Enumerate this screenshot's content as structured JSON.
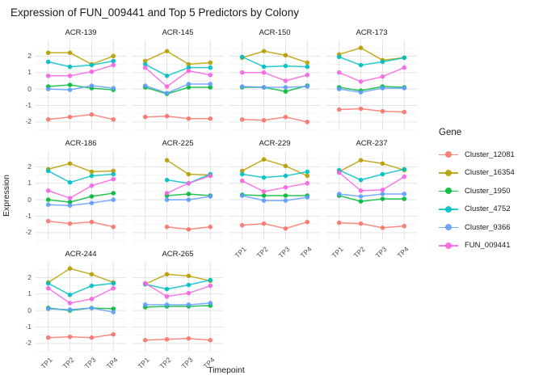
{
  "title": "Expression of FUN_009441 and Top 5 Predictors by Colony",
  "axes": {
    "x_title": "Timepoint",
    "y_title": "Expression",
    "y_tick_labels": [
      "2",
      "1",
      "0",
      "-1",
      "-2"
    ],
    "x_tick_labels": [
      "TP1",
      "TP2",
      "TP3",
      "TP4"
    ]
  },
  "legend": {
    "title": "Gene",
    "position": "right",
    "entries": [
      {
        "label": "Cluster_12081",
        "color": "#F8766D"
      },
      {
        "label": "Cluster_16354",
        "color": "#B79F00"
      },
      {
        "label": "Cluster_1950",
        "color": "#00BA38"
      },
      {
        "label": "Cluster_4752",
        "color": "#00BFC4"
      },
      {
        "label": "Cluster_9366",
        "color": "#619CFF"
      },
      {
        "label": "FUN_009441",
        "color": "#F564E3"
      }
    ]
  },
  "chart_data": {
    "type": "line",
    "title": "Expression of FUN_009441 and Top 5 Predictors by Colony",
    "xlabel": "Timepoint",
    "ylabel": "Expression",
    "x": [
      "TP1",
      "TP2",
      "TP3",
      "TP4"
    ],
    "ylim": [
      -2.45,
      2.95
    ],
    "y_major_gridlines": [
      -2,
      -1,
      0,
      1,
      2
    ],
    "y_minor_gridlines": [
      -2.5,
      -1.5,
      -0.5,
      0.5,
      1.5,
      2.5
    ],
    "grid": true,
    "series_colors": {
      "Cluster_12081": "#F8766D",
      "Cluster_16354": "#B79F00",
      "Cluster_1950": "#00BA38",
      "Cluster_4752": "#00BFC4",
      "Cluster_9366": "#619CFF",
      "FUN_009441": "#F564E3"
    },
    "facets": [
      {
        "name": "ACR-139",
        "show_x_ticks": false,
        "show_y_ticks": true,
        "series": [
          {
            "name": "Cluster_12081",
            "values": [
              -1.85,
              -1.7,
              -1.55,
              -1.85
            ]
          },
          {
            "name": "Cluster_16354",
            "values": [
              2.2,
              2.2,
              1.5,
              2.0
            ]
          },
          {
            "name": "Cluster_1950",
            "values": [
              0.15,
              0.25,
              0.05,
              -0.05
            ]
          },
          {
            "name": "Cluster_4752",
            "values": [
              1.65,
              1.35,
              1.45,
              1.7
            ]
          },
          {
            "name": "Cluster_9366",
            "values": [
              0.0,
              -0.05,
              0.2,
              0.05
            ]
          },
          {
            "name": "FUN_009441",
            "values": [
              0.8,
              0.8,
              1.05,
              1.45
            ]
          }
        ]
      },
      {
        "name": "ACR-145",
        "show_x_ticks": false,
        "show_y_ticks": false,
        "series": [
          {
            "name": "Cluster_12081",
            "values": [
              -1.7,
              -1.65,
              -1.8,
              -1.8
            ]
          },
          {
            "name": "Cluster_16354",
            "values": [
              1.7,
              2.3,
              1.5,
              1.6
            ]
          },
          {
            "name": "Cluster_1950",
            "values": [
              0.1,
              -0.3,
              0.1,
              0.1
            ]
          },
          {
            "name": "Cluster_4752",
            "values": [
              1.5,
              0.8,
              1.3,
              1.3
            ]
          },
          {
            "name": "Cluster_9366",
            "values": [
              0.2,
              -0.25,
              0.3,
              0.3
            ]
          },
          {
            "name": "FUN_009441",
            "values": [
              1.3,
              0.15,
              1.1,
              0.85
            ]
          }
        ]
      },
      {
        "name": "ACR-150",
        "show_x_ticks": false,
        "show_y_ticks": false,
        "series": [
          {
            "name": "Cluster_12081",
            "values": [
              -1.85,
              -1.9,
              -1.7,
              -2.0
            ]
          },
          {
            "name": "Cluster_16354",
            "values": [
              1.9,
              2.3,
              2.05,
              1.6
            ]
          },
          {
            "name": "Cluster_1950",
            "values": [
              0.1,
              0.1,
              -0.15,
              0.2
            ]
          },
          {
            "name": "Cluster_4752",
            "values": [
              1.95,
              1.35,
              1.4,
              1.35
            ]
          },
          {
            "name": "Cluster_9366",
            "values": [
              0.15,
              0.1,
              0.1,
              0.15
            ]
          },
          {
            "name": "FUN_009441",
            "values": [
              1.0,
              1.0,
              0.5,
              0.85
            ]
          }
        ]
      },
      {
        "name": "ACR-173",
        "show_x_ticks": false,
        "show_y_ticks": false,
        "series": [
          {
            "name": "Cluster_12081",
            "values": [
              -1.25,
              -1.2,
              -1.35,
              -1.4
            ]
          },
          {
            "name": "Cluster_16354",
            "values": [
              2.1,
              2.5,
              1.75,
              1.9
            ]
          },
          {
            "name": "Cluster_1950",
            "values": [
              0.1,
              -0.1,
              0.15,
              0.1
            ]
          },
          {
            "name": "Cluster_4752",
            "values": [
              1.95,
              1.45,
              1.65,
              1.9
            ]
          },
          {
            "name": "Cluster_9366",
            "values": [
              0.0,
              -0.2,
              0.05,
              0.05
            ]
          },
          {
            "name": "FUN_009441",
            "values": [
              1.0,
              0.45,
              0.75,
              1.3
            ]
          }
        ]
      },
      {
        "name": "ACR-186",
        "show_x_ticks": false,
        "show_y_ticks": true,
        "series": [
          {
            "name": "Cluster_12081",
            "values": [
              -1.3,
              -1.45,
              -1.35,
              -1.65
            ]
          },
          {
            "name": "Cluster_16354",
            "values": [
              1.85,
              2.2,
              1.7,
              1.75
            ]
          },
          {
            "name": "Cluster_1950",
            "values": [
              0.0,
              -0.15,
              0.2,
              0.4
            ]
          },
          {
            "name": "Cluster_4752",
            "values": [
              1.75,
              1.05,
              1.45,
              1.55
            ]
          },
          {
            "name": "Cluster_9366",
            "values": [
              -0.3,
              -0.35,
              -0.2,
              0.0
            ]
          },
          {
            "name": "FUN_009441",
            "values": [
              0.55,
              0.1,
              0.85,
              1.25
            ]
          }
        ]
      },
      {
        "name": "ACR-225",
        "show_x_ticks": false,
        "show_y_ticks": false,
        "series": [
          {
            "name": "Cluster_12081",
            "values": [
              null,
              -1.65,
              -1.8,
              -1.65
            ]
          },
          {
            "name": "Cluster_16354",
            "values": [
              null,
              2.4,
              1.55,
              1.5
            ]
          },
          {
            "name": "Cluster_1950",
            "values": [
              null,
              0.25,
              0.35,
              0.25
            ]
          },
          {
            "name": "Cluster_4752",
            "values": [
              null,
              1.2,
              1.0,
              1.55
            ]
          },
          {
            "name": "Cluster_9366",
            "values": [
              null,
              0.0,
              0.0,
              0.2
            ]
          },
          {
            "name": "FUN_009441",
            "values": [
              null,
              0.4,
              1.0,
              1.45
            ]
          }
        ]
      },
      {
        "name": "ACR-229",
        "show_x_ticks": true,
        "show_y_ticks": false,
        "series": [
          {
            "name": "Cluster_12081",
            "values": [
              -1.55,
              -1.45,
              -1.75,
              -1.35
            ]
          },
          {
            "name": "Cluster_16354",
            "values": [
              1.75,
              2.45,
              2.05,
              1.45
            ]
          },
          {
            "name": "Cluster_1950",
            "values": [
              0.3,
              0.25,
              0.25,
              0.25
            ]
          },
          {
            "name": "Cluster_4752",
            "values": [
              1.55,
              1.35,
              1.45,
              1.7
            ]
          },
          {
            "name": "Cluster_9366",
            "values": [
              0.25,
              -0.05,
              -0.05,
              0.15
            ]
          },
          {
            "name": "FUN_009441",
            "values": [
              1.15,
              0.5,
              0.75,
              1.0
            ]
          }
        ]
      },
      {
        "name": "ACR-237",
        "show_x_ticks": true,
        "show_y_ticks": false,
        "series": [
          {
            "name": "Cluster_12081",
            "values": [
              -1.4,
              -1.45,
              -1.7,
              -1.6
            ]
          },
          {
            "name": "Cluster_16354",
            "values": [
              1.7,
              2.4,
              2.2,
              1.8
            ]
          },
          {
            "name": "Cluster_1950",
            "values": [
              0.25,
              -0.1,
              0.05,
              0.05
            ]
          },
          {
            "name": "Cluster_4752",
            "values": [
              1.8,
              1.2,
              1.55,
              1.85
            ]
          },
          {
            "name": "Cluster_9366",
            "values": [
              0.35,
              0.2,
              0.35,
              0.35
            ]
          },
          {
            "name": "FUN_009441",
            "values": [
              1.65,
              0.55,
              0.6,
              1.4
            ]
          }
        ]
      },
      {
        "name": "ACR-244",
        "show_x_ticks": true,
        "show_y_ticks": true,
        "series": [
          {
            "name": "Cluster_12081",
            "values": [
              -1.65,
              -1.6,
              -1.65,
              -1.45
            ]
          },
          {
            "name": "Cluster_16354",
            "values": [
              1.7,
              2.55,
              2.2,
              1.7
            ]
          },
          {
            "name": "Cluster_1950",
            "values": [
              0.15,
              0.0,
              0.15,
              0.1
            ]
          },
          {
            "name": "Cluster_4752",
            "values": [
              1.65,
              0.95,
              1.5,
              1.65
            ]
          },
          {
            "name": "Cluster_9366",
            "values": [
              0.1,
              0.05,
              0.15,
              -0.1
            ]
          },
          {
            "name": "FUN_009441",
            "values": [
              1.35,
              0.45,
              0.7,
              1.35
            ]
          }
        ]
      },
      {
        "name": "ACR-265",
        "show_x_ticks": true,
        "show_y_ticks": false,
        "series": [
          {
            "name": "Cluster_12081",
            "values": [
              -1.8,
              -1.75,
              -1.7,
              -1.8
            ]
          },
          {
            "name": "Cluster_16354",
            "values": [
              1.6,
              2.2,
              2.1,
              1.8
            ]
          },
          {
            "name": "Cluster_1950",
            "values": [
              0.2,
              0.25,
              0.25,
              0.3
            ]
          },
          {
            "name": "Cluster_4752",
            "values": [
              1.6,
              1.3,
              1.55,
              1.85
            ]
          },
          {
            "name": "Cluster_9366",
            "values": [
              0.35,
              0.35,
              0.35,
              0.45
            ]
          },
          {
            "name": "FUN_009441",
            "values": [
              1.65,
              0.85,
              1.05,
              1.5
            ]
          }
        ]
      }
    ]
  }
}
